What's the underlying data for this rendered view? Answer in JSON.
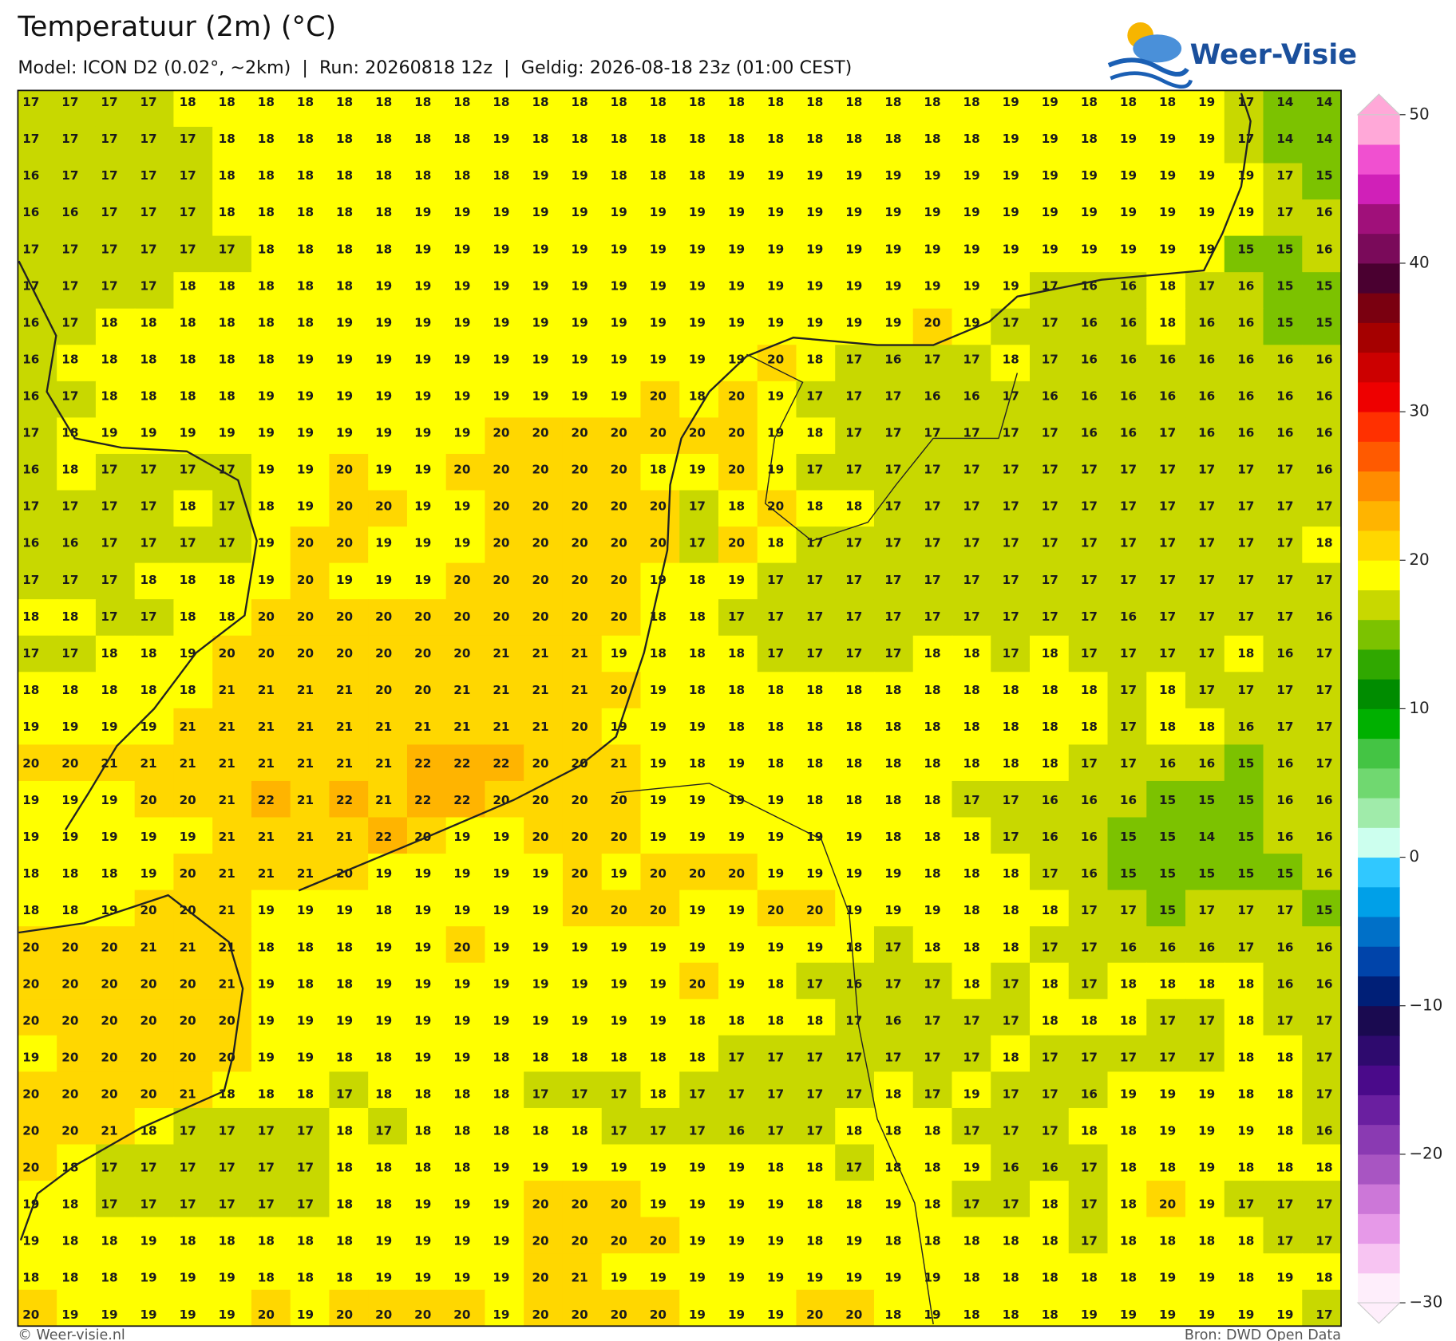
{
  "header": {
    "title": "Temperatuur (2m) (°C)",
    "subtitle": "Model: ICON D2 (0.02°, ~2km)  |  Run: 20260818 12z  |  Geldig: 2026-08-18 23z (01:00 CEST)"
  },
  "logo": {
    "text": "Weer-Visie"
  },
  "map": {
    "temperatures": [
      [
        17,
        17,
        17,
        17,
        18,
        18,
        18,
        18,
        18,
        18,
        18,
        18,
        18,
        18,
        18,
        18,
        18,
        18,
        18,
        18,
        18,
        18,
        18,
        18,
        18,
        19,
        19,
        18,
        18,
        18,
        19,
        17,
        14,
        14
      ],
      [
        17,
        17,
        17,
        17,
        17,
        18,
        18,
        18,
        18,
        18,
        18,
        18,
        19,
        18,
        18,
        18,
        18,
        18,
        18,
        18,
        18,
        18,
        18,
        18,
        18,
        19,
        19,
        18,
        19,
        19,
        19,
        17,
        14,
        14
      ],
      [
        16,
        17,
        17,
        17,
        17,
        18,
        18,
        18,
        18,
        18,
        18,
        18,
        18,
        19,
        19,
        18,
        18,
        18,
        19,
        19,
        19,
        19,
        19,
        19,
        19,
        19,
        19,
        19,
        19,
        19,
        19,
        19,
        17,
        15
      ],
      [
        16,
        16,
        17,
        17,
        17,
        18,
        18,
        18,
        18,
        18,
        19,
        19,
        19,
        19,
        19,
        19,
        19,
        19,
        19,
        19,
        19,
        19,
        19,
        19,
        19,
        19,
        19,
        19,
        19,
        19,
        19,
        19,
        17,
        16
      ],
      [
        17,
        17,
        17,
        17,
        17,
        17,
        18,
        18,
        18,
        18,
        19,
        19,
        19,
        19,
        19,
        19,
        19,
        19,
        19,
        19,
        19,
        19,
        19,
        19,
        19,
        19,
        19,
        19,
        19,
        19,
        19,
        15,
        15,
        16
      ],
      [
        17,
        17,
        17,
        17,
        18,
        18,
        18,
        18,
        18,
        19,
        19,
        19,
        19,
        19,
        19,
        19,
        19,
        19,
        19,
        19,
        19,
        19,
        19,
        19,
        19,
        19,
        17,
        16,
        16,
        18,
        17,
        16,
        15,
        15
      ],
      [
        16,
        17,
        18,
        18,
        18,
        18,
        18,
        18,
        19,
        19,
        19,
        19,
        19,
        19,
        19,
        19,
        19,
        19,
        19,
        19,
        19,
        19,
        19,
        20,
        19,
        17,
        17,
        16,
        16,
        18,
        16,
        16,
        15,
        15
      ],
      [
        16,
        18,
        18,
        18,
        18,
        18,
        18,
        19,
        19,
        19,
        19,
        19,
        19,
        19,
        19,
        19,
        19,
        19,
        19,
        20,
        18,
        17,
        16,
        17,
        17,
        18,
        17,
        16,
        16,
        16,
        16,
        16,
        16,
        16
      ],
      [
        16,
        17,
        18,
        18,
        18,
        18,
        19,
        19,
        19,
        19,
        19,
        19,
        19,
        19,
        19,
        19,
        20,
        18,
        20,
        19,
        17,
        17,
        17,
        16,
        16,
        17,
        16,
        16,
        16,
        16,
        16,
        16,
        16,
        16
      ],
      [
        17,
        18,
        19,
        19,
        19,
        19,
        19,
        19,
        19,
        19,
        19,
        19,
        20,
        20,
        20,
        20,
        20,
        20,
        20,
        19,
        18,
        17,
        17,
        17,
        17,
        17,
        17,
        16,
        16,
        17,
        16,
        16,
        16,
        16
      ],
      [
        16,
        18,
        17,
        17,
        17,
        17,
        19,
        19,
        20,
        19,
        19,
        20,
        20,
        20,
        20,
        20,
        18,
        19,
        20,
        19,
        17,
        17,
        17,
        17,
        17,
        17,
        17,
        17,
        17,
        17,
        17,
        17,
        17,
        16
      ],
      [
        17,
        17,
        17,
        17,
        18,
        17,
        18,
        19,
        20,
        20,
        19,
        19,
        20,
        20,
        20,
        20,
        20,
        17,
        18,
        20,
        18,
        18,
        17,
        17,
        17,
        17,
        17,
        17,
        17,
        17,
        17,
        17,
        17,
        17
      ],
      [
        16,
        16,
        17,
        17,
        17,
        17,
        19,
        20,
        20,
        19,
        19,
        19,
        20,
        20,
        20,
        20,
        20,
        17,
        20,
        18,
        17,
        17,
        17,
        17,
        17,
        17,
        17,
        17,
        17,
        17,
        17,
        17,
        17,
        18
      ],
      [
        17,
        17,
        17,
        18,
        18,
        18,
        19,
        20,
        19,
        19,
        19,
        20,
        20,
        20,
        20,
        20,
        19,
        18,
        19,
        17,
        17,
        17,
        17,
        17,
        17,
        17,
        17,
        17,
        17,
        17,
        17,
        17,
        17,
        17
      ],
      [
        18,
        18,
        17,
        17,
        18,
        18,
        20,
        20,
        20,
        20,
        20,
        20,
        20,
        20,
        20,
        20,
        18,
        18,
        17,
        17,
        17,
        17,
        17,
        17,
        17,
        17,
        17,
        17,
        16,
        17,
        17,
        17,
        17,
        16
      ],
      [
        17,
        17,
        18,
        18,
        19,
        20,
        20,
        20,
        20,
        20,
        20,
        20,
        21,
        21,
        21,
        19,
        18,
        18,
        18,
        17,
        17,
        17,
        17,
        18,
        18,
        17,
        18,
        17,
        17,
        17,
        17,
        18,
        16,
        17
      ],
      [
        18,
        18,
        18,
        18,
        18,
        21,
        21,
        21,
        21,
        20,
        20,
        21,
        21,
        21,
        21,
        20,
        19,
        18,
        18,
        18,
        18,
        18,
        18,
        18,
        18,
        18,
        18,
        18,
        17,
        18,
        17,
        17,
        17,
        17
      ],
      [
        19,
        19,
        19,
        19,
        21,
        21,
        21,
        21,
        21,
        21,
        21,
        21,
        21,
        21,
        20,
        19,
        19,
        19,
        18,
        18,
        18,
        18,
        18,
        18,
        18,
        18,
        18,
        18,
        17,
        18,
        18,
        16,
        17,
        17
      ],
      [
        20,
        20,
        21,
        21,
        21,
        21,
        21,
        21,
        21,
        21,
        22,
        22,
        22,
        20,
        20,
        21,
        19,
        18,
        19,
        18,
        18,
        18,
        18,
        18,
        18,
        18,
        18,
        17,
        17,
        16,
        16,
        15,
        16,
        17
      ],
      [
        19,
        19,
        19,
        20,
        20,
        21,
        22,
        21,
        22,
        21,
        22,
        22,
        20,
        20,
        20,
        20,
        19,
        19,
        19,
        19,
        18,
        18,
        18,
        18,
        17,
        17,
        16,
        16,
        16,
        15,
        15,
        15,
        16,
        16
      ],
      [
        19,
        19,
        19,
        19,
        19,
        21,
        21,
        21,
        21,
        22,
        20,
        19,
        19,
        20,
        20,
        20,
        19,
        19,
        19,
        19,
        19,
        19,
        18,
        18,
        18,
        17,
        16,
        16,
        15,
        15,
        14,
        15,
        16,
        16
      ],
      [
        18,
        18,
        18,
        19,
        20,
        21,
        21,
        21,
        20,
        19,
        19,
        19,
        19,
        19,
        20,
        19,
        20,
        20,
        20,
        19,
        19,
        19,
        19,
        18,
        18,
        18,
        17,
        16,
        15,
        15,
        15,
        15,
        15,
        16
      ],
      [
        18,
        18,
        19,
        20,
        20,
        21,
        19,
        19,
        19,
        18,
        19,
        19,
        19,
        19,
        20,
        20,
        20,
        19,
        19,
        20,
        20,
        19,
        19,
        19,
        18,
        18,
        18,
        17,
        17,
        15,
        17,
        17,
        17,
        15
      ],
      [
        20,
        20,
        20,
        21,
        21,
        21,
        18,
        18,
        18,
        19,
        19,
        20,
        19,
        19,
        19,
        19,
        19,
        19,
        19,
        19,
        19,
        18,
        17,
        18,
        18,
        18,
        17,
        17,
        16,
        16,
        16,
        17,
        16,
        16
      ],
      [
        20,
        20,
        20,
        20,
        20,
        21,
        19,
        18,
        18,
        19,
        19,
        19,
        19,
        19,
        19,
        19,
        19,
        20,
        19,
        18,
        17,
        16,
        17,
        17,
        18,
        17,
        18,
        17,
        18,
        18,
        18,
        18,
        16,
        16
      ],
      [
        20,
        20,
        20,
        20,
        20,
        20,
        19,
        19,
        19,
        19,
        19,
        19,
        19,
        19,
        19,
        19,
        19,
        18,
        18,
        18,
        18,
        17,
        16,
        17,
        17,
        17,
        18,
        18,
        18,
        17,
        17,
        18,
        17,
        17
      ],
      [
        19,
        20,
        20,
        20,
        20,
        20,
        19,
        19,
        18,
        18,
        19,
        19,
        18,
        18,
        18,
        18,
        18,
        18,
        17,
        17,
        17,
        17,
        17,
        17,
        17,
        18,
        17,
        17,
        17,
        17,
        17,
        18,
        18,
        17
      ],
      [
        20,
        20,
        20,
        20,
        21,
        18,
        18,
        18,
        17,
        18,
        18,
        18,
        18,
        17,
        17,
        17,
        18,
        17,
        17,
        17,
        17,
        17,
        18,
        17,
        19,
        17,
        17,
        16,
        19,
        19,
        19,
        18,
        18,
        17
      ],
      [
        20,
        20,
        21,
        18,
        17,
        17,
        17,
        17,
        18,
        17,
        18,
        18,
        18,
        18,
        18,
        17,
        17,
        17,
        16,
        17,
        17,
        18,
        18,
        18,
        17,
        17,
        17,
        18,
        18,
        19,
        19,
        19,
        18,
        16
      ],
      [
        20,
        18,
        17,
        17,
        17,
        17,
        17,
        17,
        18,
        18,
        18,
        18,
        19,
        19,
        19,
        19,
        19,
        19,
        19,
        18,
        18,
        17,
        18,
        18,
        19,
        16,
        16,
        17,
        18,
        18,
        19,
        18,
        18,
        18
      ],
      [
        19,
        18,
        17,
        17,
        17,
        17,
        17,
        17,
        18,
        18,
        19,
        19,
        19,
        20,
        20,
        20,
        19,
        19,
        19,
        19,
        18,
        18,
        19,
        18,
        17,
        17,
        18,
        17,
        18,
        20,
        19,
        17,
        17,
        17
      ],
      [
        19,
        18,
        18,
        19,
        18,
        18,
        18,
        18,
        18,
        19,
        19,
        19,
        19,
        20,
        20,
        20,
        20,
        19,
        19,
        19,
        18,
        19,
        18,
        18,
        18,
        18,
        18,
        17,
        18,
        18,
        18,
        18,
        17,
        17
      ],
      [
        18,
        18,
        18,
        19,
        19,
        19,
        18,
        18,
        18,
        19,
        19,
        19,
        19,
        20,
        21,
        19,
        19,
        19,
        19,
        19,
        19,
        19,
        19,
        19,
        18,
        18,
        18,
        18,
        18,
        19,
        19,
        18,
        19,
        18
      ],
      [
        20,
        19,
        19,
        19,
        19,
        19,
        20,
        19,
        20,
        20,
        20,
        20,
        19,
        20,
        20,
        20,
        20,
        19,
        19,
        19,
        20,
        20,
        18,
        19,
        18,
        18,
        18,
        19,
        19,
        19,
        19,
        19,
        19,
        17
      ]
    ]
  },
  "colorbar": {
    "lim": [
      -30,
      50
    ],
    "ticks": [
      50,
      40,
      30,
      20,
      10,
      0,
      {
        "value": -10,
        "label": "−10"
      },
      {
        "value": -20,
        "label": "−20"
      },
      {
        "value": -30,
        "label": "−30"
      }
    ],
    "colors": [
      "#feeefb",
      "#f7c4f2",
      "#e699e8",
      "#cc77d8",
      "#a855c2",
      "#8a3ab2",
      "#6a1fa0",
      "#4a0a8a",
      "#2e0a6e",
      "#1a0a50",
      "#001f77",
      "#0044aa",
      "#0070c8",
      "#00a0e8",
      "#30c8ff",
      "#ccffee",
      "#a0ebaa",
      "#70d870",
      "#44c444",
      "#00b000",
      "#008c00",
      "#30a800",
      "#7cc200",
      "#c8d800",
      "#ffff00",
      "#ffd700",
      "#ffb400",
      "#ff8c00",
      "#ff5a00",
      "#ff3000",
      "#ee0000",
      "#cc0000",
      "#a50000",
      "#7a0010",
      "#4a0030",
      "#7a0a5a",
      "#a0107a",
      "#d020b8",
      "#f050d0",
      "#ffa8d8"
    ]
  },
  "footer": {
    "credit": "© Weer-visie.nl",
    "source": "Bron: DWD Open Data"
  }
}
